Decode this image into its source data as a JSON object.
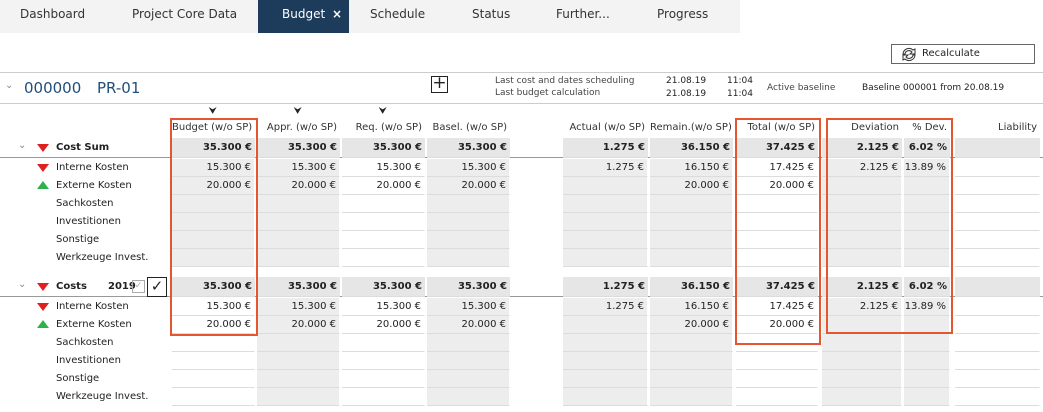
{
  "tabs": [
    "Dashboard",
    "Project Core Data",
    "Budget",
    "Schedule",
    "Status",
    "Further...",
    "Progress"
  ],
  "active_tab": 2,
  "recalculate": "Recalculate",
  "project": {
    "number": "000000",
    "name": "PR-01",
    "scheduling_labels": [
      "Last cost and dates scheduling",
      "Last budget calculation"
    ],
    "scheduling_dates": [
      "21.08.19",
      "21.08.19"
    ],
    "scheduling_times": [
      "11:04",
      "11:04"
    ],
    "baseline_label": "Active baseline",
    "baseline": "Baseline 000001 from 20.08.19"
  },
  "columns": [
    "Budget (w/o SP)",
    "Appr. (w/o SP)",
    "Req. (w/o SP)",
    "Basel. (w/o SP)",
    "Actual (w/o SP)",
    "Remain.(w/o SP)",
    "Total (w/o SP)",
    "Deviation",
    "% Dev.",
    "Liability"
  ],
  "sections": [
    {
      "name": "Cost Sum",
      "trend": "down",
      "total": [
        "35.300 €",
        "35.300 €",
        "35.300 €",
        "35.300 €",
        "1.275 €",
        "36.150 €",
        "37.425 €",
        "2.125 €",
        "6.02 %",
        null
      ],
      "rows": [
        {
          "name": "Interne Kosten",
          "trend": "down",
          "cells": [
            "15.300 €",
            "15.300 €",
            "15.300 €",
            "15.300 €",
            "1.275 €",
            "16.150 €",
            "17.425 €",
            "2.125 €",
            "13.89 %",
            null
          ]
        },
        {
          "name": "Externe Kosten",
          "trend": "up",
          "cells": [
            "20.000 €",
            "20.000 €",
            "20.000 €",
            "20.000 €",
            null,
            "20.000 €",
            "20.000 €",
            null,
            null,
            null
          ]
        },
        {
          "name": "Sachkosten",
          "cells": [
            null,
            null,
            null,
            null,
            null,
            null,
            null,
            null,
            null,
            null
          ]
        },
        {
          "name": "Investitionen",
          "cells": [
            null,
            null,
            null,
            null,
            null,
            null,
            null,
            null,
            null,
            null
          ]
        },
        {
          "name": "Sonstige",
          "cells": [
            null,
            null,
            null,
            null,
            null,
            null,
            null,
            null,
            null,
            null
          ]
        },
        {
          "name": "Werkzeuge Invest.",
          "cells": [
            null,
            null,
            null,
            null,
            null,
            null,
            null,
            null,
            null,
            null
          ]
        }
      ]
    },
    {
      "name": "Costs",
      "year": "2019",
      "trend": "down",
      "total": [
        "35.300 €",
        "35.300 €",
        "35.300 €",
        "35.300 €",
        "1.275 €",
        "36.150 €",
        "37.425 €",
        "2.125 €",
        "6.02 %",
        null
      ],
      "rows": [
        {
          "name": "Interne Kosten",
          "trend": "down",
          "cells": [
            "15.300 €",
            "15.300 €",
            "15.300 €",
            "15.300 €",
            "1.275 €",
            "16.150 €",
            "17.425 €",
            "2.125 €",
            "13.89 %",
            null
          ]
        },
        {
          "name": "Externe Kosten",
          "trend": "up",
          "cells": [
            "20.000 €",
            "20.000 €",
            "20.000 €",
            "20.000 €",
            null,
            "20.000 €",
            "20.000 €",
            null,
            null,
            null
          ]
        },
        {
          "name": "Sachkosten",
          "cells": [
            null,
            null,
            null,
            null,
            null,
            null,
            null,
            null,
            null,
            null
          ]
        },
        {
          "name": "Investitionen",
          "cells": [
            null,
            null,
            null,
            null,
            null,
            null,
            null,
            null,
            null,
            null
          ]
        },
        {
          "name": "Sonstige",
          "cells": [
            null,
            null,
            null,
            null,
            null,
            null,
            null,
            null,
            null,
            null
          ]
        },
        {
          "name": "Werkzeuge Invest.",
          "cells": [
            null,
            null,
            null,
            null,
            null,
            null,
            null,
            null,
            null,
            null
          ]
        }
      ]
    }
  ]
}
